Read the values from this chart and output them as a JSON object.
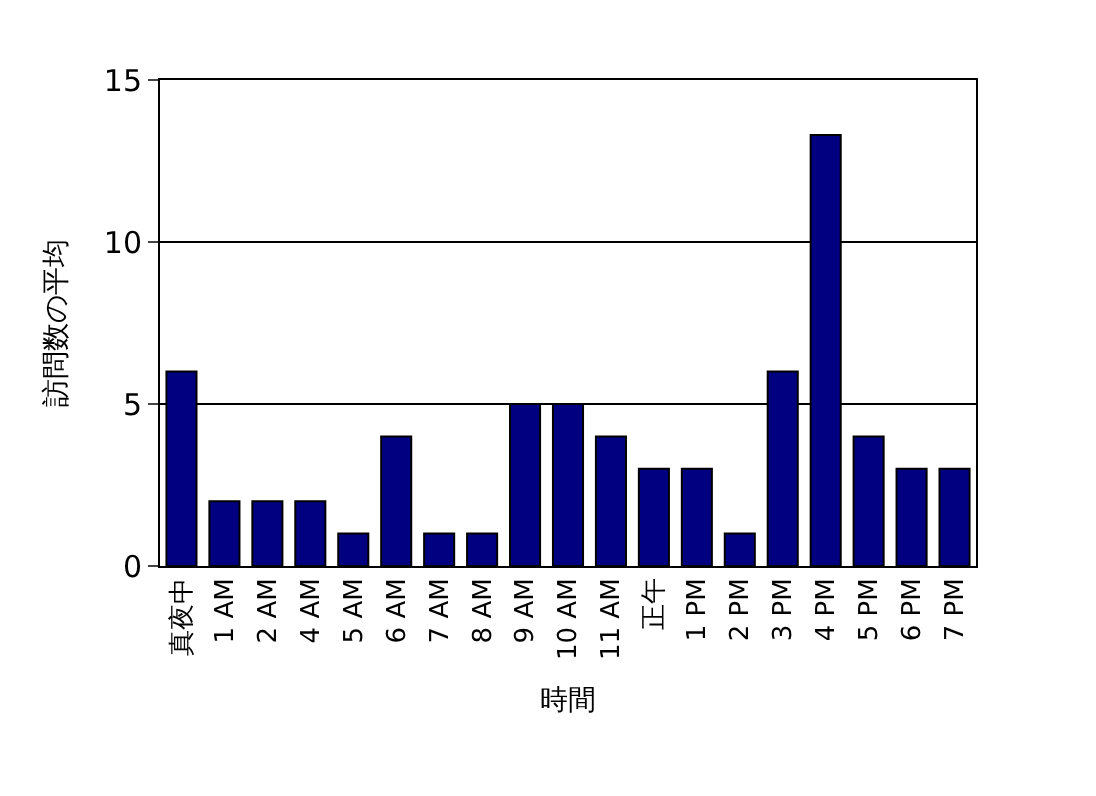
{
  "chart_data": {
    "type": "bar",
    "xlabel": "時間",
    "ylabel": "訪問数の平均",
    "categories": [
      "真夜中",
      "1 AM",
      "2 AM",
      "4 AM",
      "5 AM",
      "6 AM",
      "7 AM",
      "8 AM",
      "9 AM",
      "10 AM",
      "11 AM",
      "正午",
      "1 PM",
      "2 PM",
      "3 PM",
      "4 PM",
      "5 PM",
      "6 PM",
      "7 PM"
    ],
    "values": [
      6,
      2,
      2,
      2,
      1,
      4,
      1,
      1,
      5,
      5,
      4,
      3,
      3,
      1,
      6,
      13.3,
      4,
      3,
      3
    ],
    "color": "#000080",
    "ylim": [
      0,
      15
    ],
    "yticks": [
      0,
      5,
      10,
      15
    ],
    "grid": "y",
    "legend": false
  }
}
